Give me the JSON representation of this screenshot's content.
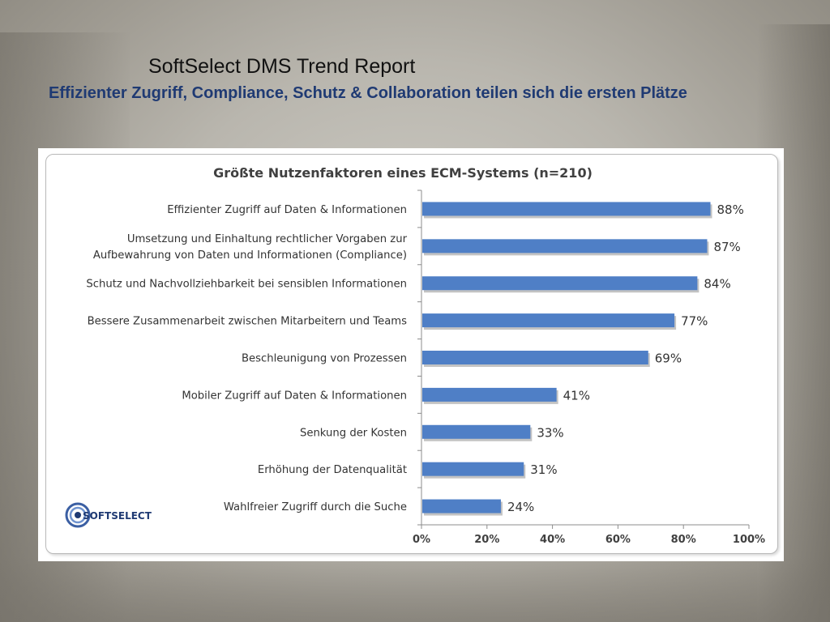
{
  "slide": {
    "title": "SoftSelect DMS Trend Report",
    "subtitle": "Effizienter Zugriff, Compliance, Schutz & Collaboration teilen sich die ersten Plätze"
  },
  "logo": {
    "text": "SOFTSELECT",
    "icon": "softselect-swirl-icon",
    "color": "#1f3a73"
  },
  "chart_data": {
    "type": "bar",
    "orientation": "horizontal",
    "title": "Größte Nutzenfaktoren eines ECM-Systems (n=210)",
    "categories": [
      [
        "Effizienter Zugriff auf Daten & Informationen"
      ],
      [
        "Umsetzung und Einhaltung rechtlicher Vorgaben zur",
        "Aufbewahrung von Daten und Informationen (Compliance)"
      ],
      [
        "Schutz und Nachvollziehbarkeit bei sensiblen Informationen"
      ],
      [
        "Bessere Zusammenarbeit zwischen Mitarbeitern und Teams"
      ],
      [
        "Beschleunigung von Prozessen"
      ],
      [
        "Mobiler Zugriff auf Daten & Informationen"
      ],
      [
        "Senkung der Kosten"
      ],
      [
        "Erhöhung der Datenqualität"
      ],
      [
        "Wahlfreier Zugriff durch die Suche"
      ]
    ],
    "values": [
      88,
      87,
      84,
      77,
      69,
      41,
      33,
      31,
      24
    ],
    "value_labels": [
      "88%",
      "87%",
      "84%",
      "77%",
      "69%",
      "41%",
      "33%",
      "31%",
      "24%"
    ],
    "xlim": [
      0,
      100
    ],
    "xticks": [
      0,
      20,
      40,
      60,
      80,
      100
    ],
    "xtick_labels": [
      "0%",
      "20%",
      "40%",
      "60%",
      "80%",
      "100%"
    ],
    "grid": false,
    "bar_color": "#4f7fc6",
    "bar_shadow_color": "#a9a9a9"
  }
}
